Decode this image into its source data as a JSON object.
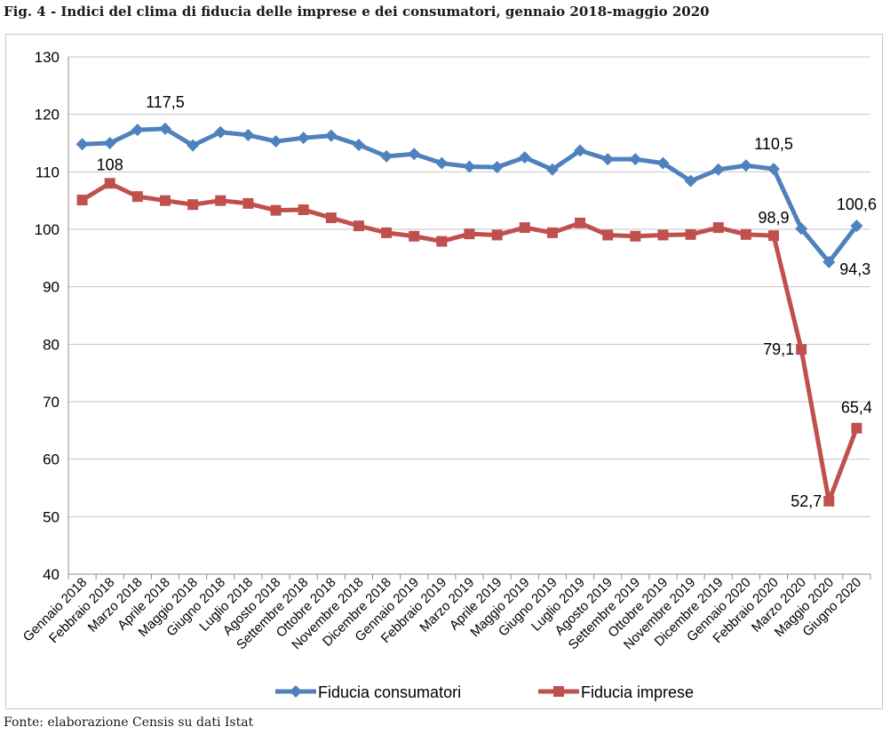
{
  "title": "Fig. 4 - Indici del clima di fiducia delle imprese e dei consumatori, gennaio 2018-maggio 2020",
  "source": "Fonte: elaborazione Censis su dati Istat",
  "colors": {
    "consumatori": "#4F81BD",
    "imprese": "#C0504D",
    "grid": "#c6c6c6"
  },
  "chart_data": {
    "type": "line",
    "title": "Fig. 4 - Indici del clima di fiducia delle imprese e dei consumatori, gennaio 2018-maggio 2020",
    "xlabel": "",
    "ylabel": "",
    "ylim": [
      40,
      130
    ],
    "yticks": [
      40,
      50,
      60,
      70,
      80,
      90,
      100,
      110,
      120,
      130
    ],
    "grid": true,
    "legend": "bottom",
    "categories": [
      "Gennaio 2018",
      "Febbraio 2018",
      "Marzo 2018",
      "Aprile 2018",
      "Maggio 2018",
      "Giugno 2018",
      "Luglio 2018",
      "Agosto 2018",
      "Settembre 2018",
      "Ottobre 2018",
      "Novembre 2018",
      "Dicembre 2018",
      "Gennaio 2019",
      "Febbraio 2019",
      "Marzo 2019",
      "Aprile 2019",
      "Maggio 2019",
      "Giugno 2019",
      "Luglio 2019",
      "Agosto 2019",
      "Settembre 2019",
      "Ottobre 2019",
      "Novembre 2019",
      "Dicembre 2019",
      "Gennaio 2020",
      "Febbraio 2020",
      "Marzo 2020",
      "Maggio 2020",
      "Giugno 2020"
    ],
    "series": [
      {
        "name": "Fiducia consumatori",
        "color": "#4F81BD",
        "marker": "diamond",
        "values": [
          114.8,
          115.0,
          117.3,
          117.5,
          114.6,
          116.9,
          116.4,
          115.3,
          115.9,
          116.3,
          114.7,
          112.7,
          113.1,
          111.5,
          110.9,
          110.8,
          112.5,
          110.4,
          113.7,
          112.2,
          112.2,
          111.5,
          108.4,
          110.4,
          111.1,
          110.5,
          100.1,
          94.3,
          100.6
        ],
        "labels": [
          {
            "index": 3,
            "text": "117,5",
            "pos": "above"
          },
          {
            "index": 25,
            "text": "110,5",
            "pos": "above"
          },
          {
            "index": 27,
            "text": "94,3",
            "pos": "right"
          },
          {
            "index": 28,
            "text": "100,6",
            "pos": "above"
          }
        ]
      },
      {
        "name": "Fiducia imprese",
        "color": "#C0504D",
        "marker": "square",
        "values": [
          105.1,
          108.0,
          105.7,
          105.0,
          104.3,
          105.0,
          104.5,
          103.3,
          103.4,
          102.0,
          100.6,
          99.4,
          98.8,
          97.9,
          99.2,
          99.0,
          100.3,
          99.4,
          101.1,
          99.0,
          98.8,
          99.0,
          99.1,
          100.3,
          99.1,
          98.9,
          79.1,
          52.7,
          65.4
        ],
        "labels": [
          {
            "index": 1,
            "text": "108",
            "pos": "above"
          },
          {
            "index": 25,
            "text": "98,9",
            "pos": "above"
          },
          {
            "index": 26,
            "text": "79,1",
            "pos": "left"
          },
          {
            "index": 27,
            "text": "52,7",
            "pos": "left"
          },
          {
            "index": 28,
            "text": "65,4",
            "pos": "above"
          }
        ]
      }
    ]
  }
}
